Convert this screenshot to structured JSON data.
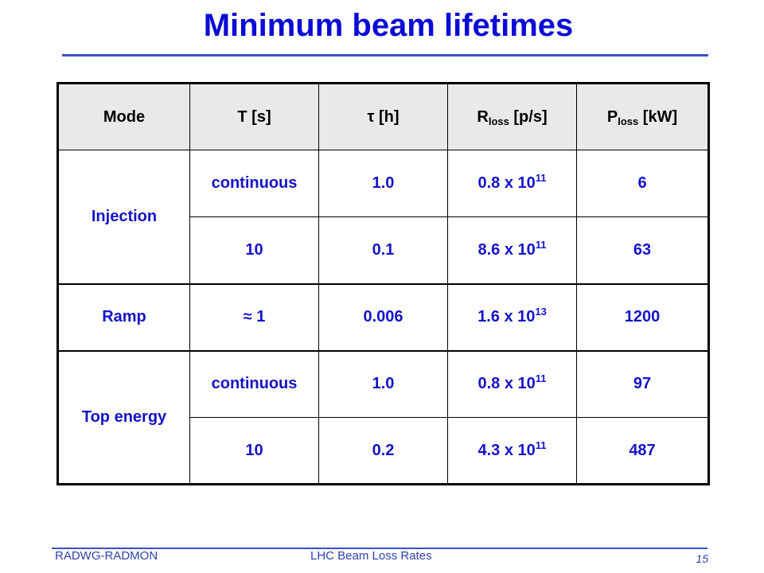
{
  "slide": {
    "title": "Minimum beam lifetimes"
  },
  "table": {
    "headers": {
      "mode": "Mode",
      "t": "T [s]",
      "tau_symbol": "τ",
      "tau_unit": " [h]",
      "rloss_base": "R",
      "rloss_sub": "loss",
      "rloss_unit": " [p/s]",
      "ploss_base": "P",
      "ploss_sub": "loss",
      "ploss_unit": " [kW]"
    },
    "rows": [
      {
        "mode": "Injection",
        "t": "continuous",
        "tau": "1.0",
        "r_mant": "0.8 x 10",
        "r_exp": "11",
        "p": "6"
      },
      {
        "mode": "",
        "t": "10",
        "tau": "0.1",
        "r_mant": "8.6 x 10",
        "r_exp": "11",
        "p": "63"
      },
      {
        "mode": "Ramp",
        "t": "≈ 1",
        "tau": "0.006",
        "r_mant": "1.6 x 10",
        "r_exp": "13",
        "p": "1200"
      },
      {
        "mode": "Top energy",
        "t": "continuous",
        "tau": "1.0",
        "r_mant": "0.8 x 10",
        "r_exp": "11",
        "p": "97"
      },
      {
        "mode": "",
        "t": "10",
        "tau": "0.2",
        "r_mant": "4.3 x 10",
        "r_exp": "11",
        "p": "487"
      }
    ]
  },
  "footer": {
    "left": "RADWG-RADMON",
    "middle": "LHC Beam Loss Rates",
    "page_number": "15"
  }
}
